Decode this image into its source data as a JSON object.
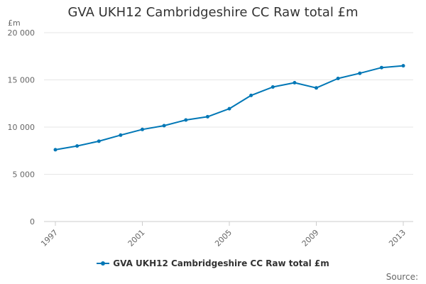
{
  "chart_data": {
    "type": "line",
    "title": "GVA UKH12 Cambridgeshire CC Raw total £m",
    "ylabel": "£m",
    "xlabel": "",
    "x": [
      1997,
      1998,
      1999,
      2000,
      2001,
      2002,
      2003,
      2004,
      2005,
      2006,
      2007,
      2008,
      2009,
      2010,
      2011,
      2012,
      2013
    ],
    "xticks": [
      "1997",
      "2001",
      "2005",
      "2009",
      "2013"
    ],
    "yticks": [
      "0",
      "5 000",
      "10 000",
      "15 000",
      "20 000"
    ],
    "ylim": [
      0,
      20000
    ],
    "grid": true,
    "legend_position": "bottom",
    "series": [
      {
        "name": "GVA UKH12 Cambridgeshire CC Raw total £m",
        "color": "#0077b6",
        "values": [
          7600,
          8000,
          8500,
          9150,
          9750,
          10150,
          10750,
          11100,
          11950,
          13350,
          14250,
          14700,
          14150,
          15150,
          15700,
          16300,
          16500
        ]
      }
    ]
  },
  "footer": {
    "source_label": "Source:"
  }
}
